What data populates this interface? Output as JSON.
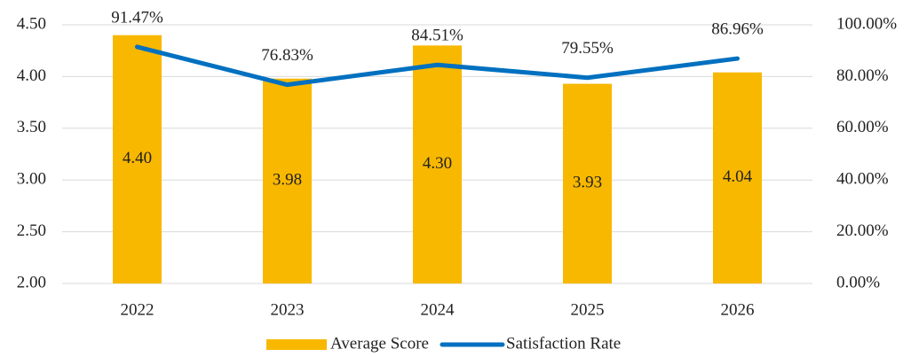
{
  "chart_data": {
    "type": "bar",
    "categories": [
      "2022",
      "2023",
      "2024",
      "2025",
      "2026"
    ],
    "series": [
      {
        "name": "Average Score",
        "type": "bar",
        "color": "#f8b800",
        "values": [
          4.4,
          3.98,
          4.3,
          3.93,
          4.04
        ],
        "value_labels": [
          "4.40",
          "3.98",
          "4.30",
          "3.93",
          "4.04"
        ]
      },
      {
        "name": "Satisfaction Rate",
        "type": "line",
        "axis": "y2",
        "color": "#0070c0",
        "values": [
          91.47,
          76.83,
          84.51,
          79.55,
          86.96
        ],
        "value_labels": [
          "91.47%",
          "76.83%",
          "84.51%",
          "79.55%",
          "86.96%"
        ]
      }
    ],
    "ylim": [
      2.0,
      4.5
    ],
    "yticks": [
      {
        "value": 2,
        "label": "2.00"
      },
      {
        "value": 2.5,
        "label": "2.50"
      },
      {
        "value": 3,
        "label": "3.00"
      },
      {
        "value": 3.5,
        "label": "3.50"
      },
      {
        "value": 4,
        "label": "4.00"
      },
      {
        "value": 4.5,
        "label": "4.50"
      }
    ],
    "y2lim": [
      0,
      100
    ],
    "y2ticks": [
      {
        "value": 0,
        "label": "0.00%"
      },
      {
        "value": 20,
        "label": "20.00%"
      },
      {
        "value": 40,
        "label": "40.00%"
      },
      {
        "value": 60,
        "label": "60.00%"
      },
      {
        "value": 80,
        "label": "80.00%"
      },
      {
        "value": 100,
        "label": "100.00%"
      }
    ],
    "grid": true,
    "legend": "bottom"
  }
}
